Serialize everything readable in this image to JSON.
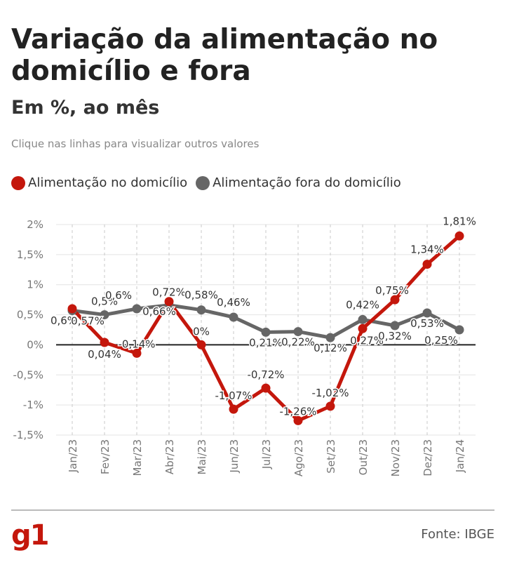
{
  "header": {
    "title": "Variação da alimentação no domicílio e fora",
    "subtitle": "Em %, ao mês",
    "hint": "Clique nas linhas para visualizar outros valores"
  },
  "footer": {
    "logo": "g1",
    "source": "Fonte: IBGE"
  },
  "chart_data": {
    "type": "line",
    "categories": [
      "Jan/23",
      "Fev/23",
      "Mar/23",
      "Abr/23",
      "Mai/23",
      "Jun/23",
      "Jul/23",
      "Ago/23",
      "Set/23",
      "Out/23",
      "Nov/23",
      "Dez/23",
      "Jan/24"
    ],
    "series": [
      {
        "name": "Alimentação no domicílio",
        "color": "#c4170c",
        "values": [
          0.6,
          0.04,
          -0.14,
          0.72,
          0,
          -1.07,
          -0.72,
          -1.26,
          -1.02,
          0.27,
          0.75,
          1.34,
          1.81
        ],
        "labels": [
          "0,6%",
          "0,04%",
          "-0,14%",
          "0,72%",
          "0%",
          "-1,07%",
          "-0,72%",
          "-1,26%",
          "-1,02%",
          "0,27%",
          "0,75%",
          "1,34%",
          "1,81%"
        ]
      },
      {
        "name": "Alimentação fora do domicílio",
        "color": "#666666",
        "values": [
          0.57,
          0.5,
          0.6,
          0.66,
          0.58,
          0.46,
          0.21,
          0.22,
          0.12,
          0.42,
          0.32,
          0.53,
          0.25
        ],
        "labels": [
          "0,57%",
          "0,5%",
          "0,6%",
          "0,66%",
          "0,58%",
          "0,46%",
          "0,21%",
          "0,22%",
          "0,12%",
          "0,42%",
          "0,32%",
          "0,53%",
          "0,25%"
        ]
      }
    ],
    "yticks": [
      2,
      1.5,
      1,
      0.5,
      0,
      -0.5,
      -1,
      -1.5
    ],
    "ytick_labels": [
      "2%",
      "1,5%",
      "1%",
      "0,5%",
      "0%",
      "-0,5%",
      "-1%",
      "-1,5%"
    ],
    "ylim": [
      -1.5,
      2
    ],
    "grid": true,
    "legend_position": "top-left"
  }
}
